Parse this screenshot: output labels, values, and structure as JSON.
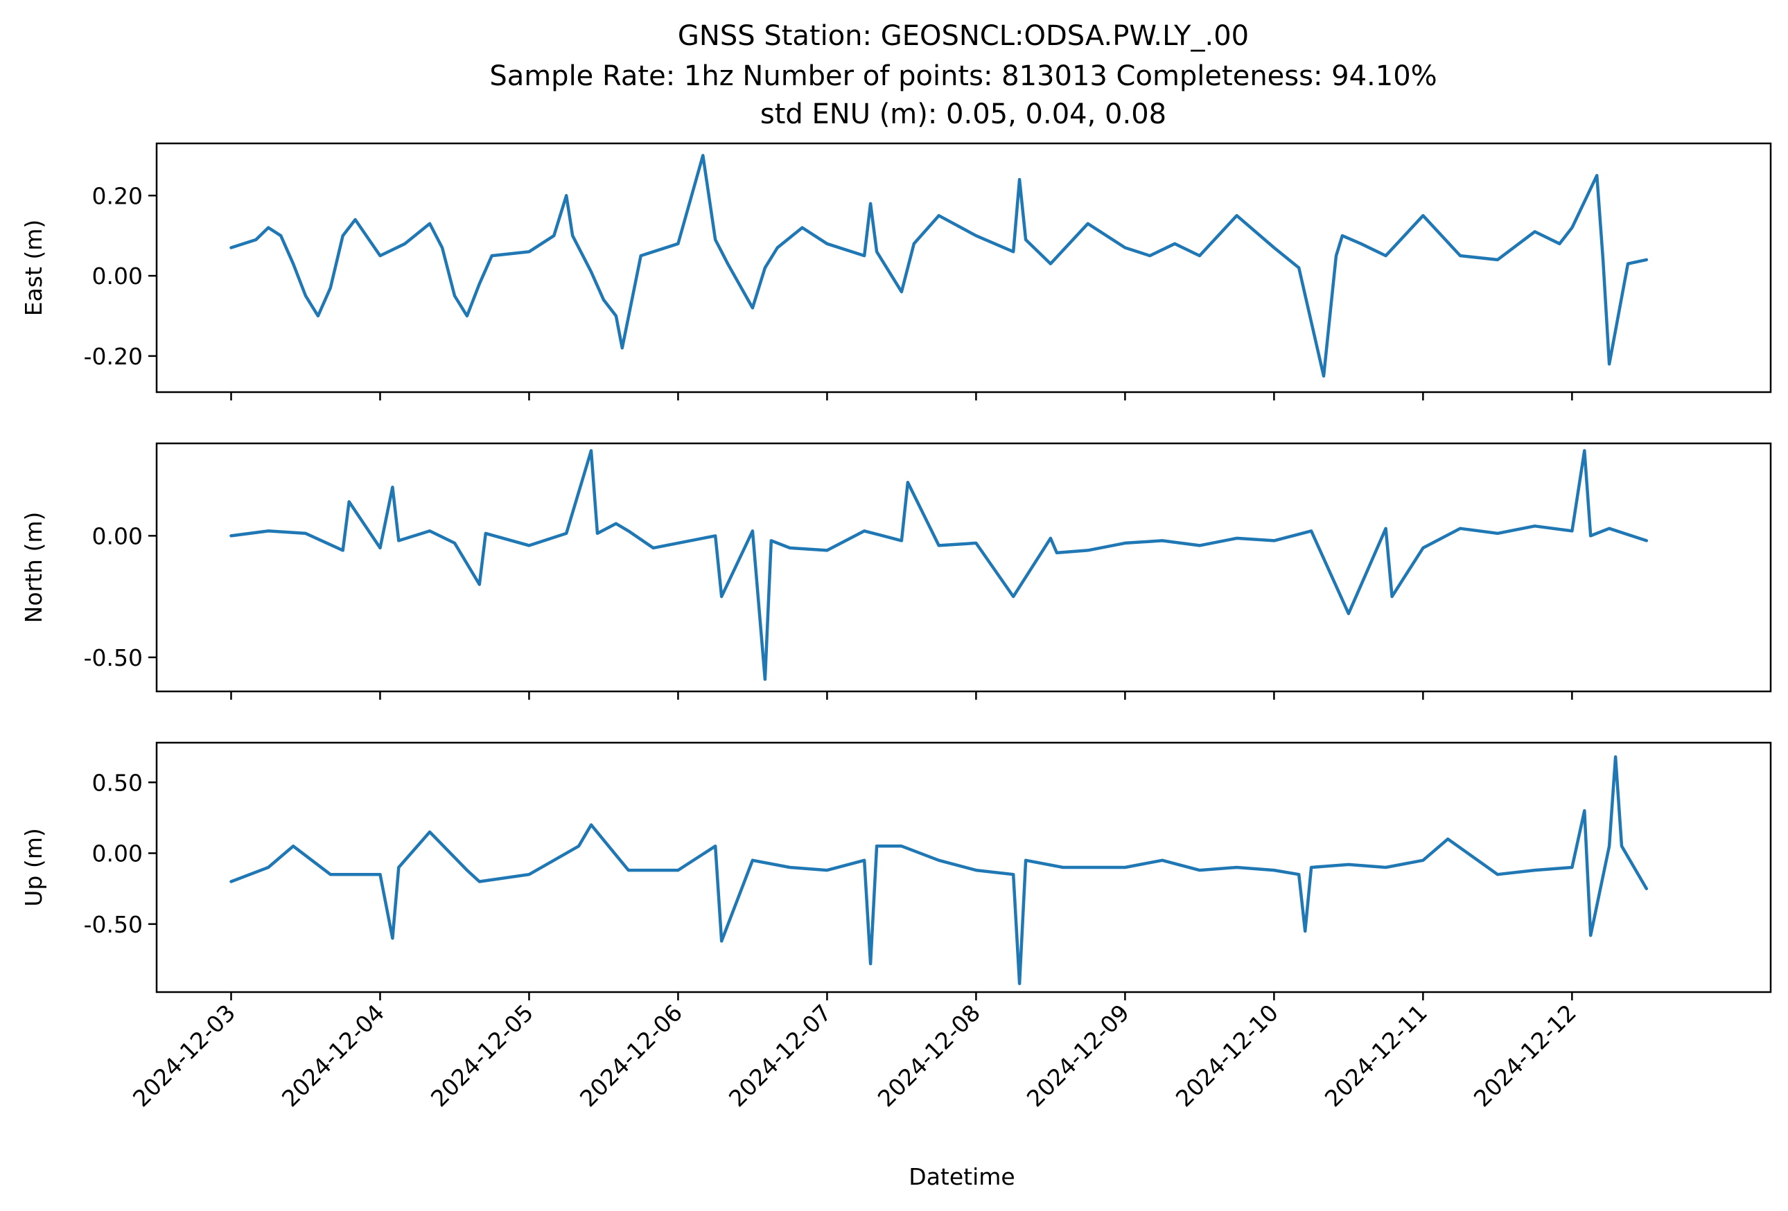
{
  "figure": {
    "title_lines": [
      "GNSS Station: GEOSNCL:ODSA.PW.LY_.00",
      "Sample Rate: 1hz   Number of points: 813013    Completeness:  94.10%",
      "std ENU (m):  0.05, 0.04, 0.08"
    ],
    "xlabel": "Datetime",
    "line_color": "#1f77b4"
  },
  "chart_data": [
    {
      "type": "line",
      "ylabel": "East (m)",
      "xlim": [
        "2024-12-02T12:00",
        "2024-12-13T08:00"
      ],
      "ylim": [
        -0.29,
        0.33
      ],
      "yticks": [
        0.2,
        0.0,
        -0.2
      ],
      "ytick_labels": [
        "0.20",
        "0.00",
        "-0.20"
      ],
      "x_ticks_labeled": false,
      "series": [
        {
          "x": [
            "2024-12-03T00:00",
            "2024-12-03T04:00",
            "2024-12-03T06:00",
            "2024-12-03T08:00",
            "2024-12-03T10:00",
            "2024-12-03T12:00",
            "2024-12-03T14:00",
            "2024-12-03T16:00",
            "2024-12-03T18:00",
            "2024-12-03T20:00",
            "2024-12-04T00:00",
            "2024-12-04T04:00",
            "2024-12-04T08:00",
            "2024-12-04T10:00",
            "2024-12-04T12:00",
            "2024-12-04T14:00",
            "2024-12-04T16:00",
            "2024-12-04T18:00",
            "2024-12-05T00:00",
            "2024-12-05T04:00",
            "2024-12-05T06:00",
            "2024-12-05T07:00",
            "2024-12-05T10:00",
            "2024-12-05T12:00",
            "2024-12-05T14:00",
            "2024-12-05T15:00",
            "2024-12-05T18:00",
            "2024-12-06T00:00",
            "2024-12-06T04:00",
            "2024-12-06T06:00",
            "2024-12-06T07:00",
            "2024-12-06T08:00",
            "2024-12-06T12:00",
            "2024-12-06T14:00",
            "2024-12-06T16:00",
            "2024-12-06T20:00",
            "2024-12-07T00:00",
            "2024-12-07T06:00",
            "2024-12-07T07:00",
            "2024-12-07T08:00",
            "2024-12-07T12:00",
            "2024-12-07T14:00",
            "2024-12-07T18:00",
            "2024-12-08T00:00",
            "2024-12-08T06:00",
            "2024-12-08T07:00",
            "2024-12-08T08:00",
            "2024-12-08T12:00",
            "2024-12-08T18:00",
            "2024-12-09T00:00",
            "2024-12-09T04:00",
            "2024-12-09T08:00",
            "2024-12-09T12:00",
            "2024-12-09T18:00",
            "2024-12-10T00:00",
            "2024-12-10T04:00",
            "2024-12-10T08:00",
            "2024-12-10T10:00",
            "2024-12-10T11:00",
            "2024-12-10T14:00",
            "2024-12-10T18:00",
            "2024-12-11T00:00",
            "2024-12-11T06:00",
            "2024-12-11T12:00",
            "2024-12-11T18:00",
            "2024-12-11T22:00",
            "2024-12-12T00:00",
            "2024-12-12T04:00",
            "2024-12-12T05:00",
            "2024-12-12T06:00",
            "2024-12-12T09:00",
            "2024-12-12T12:00"
          ],
          "y": [
            0.07,
            0.09,
            0.12,
            0.1,
            0.03,
            -0.05,
            -0.1,
            -0.03,
            0.1,
            0.14,
            0.05,
            0.08,
            0.13,
            0.07,
            -0.05,
            -0.1,
            -0.02,
            0.05,
            0.06,
            0.1,
            0.2,
            0.1,
            0.01,
            -0.06,
            -0.1,
            -0.18,
            0.05,
            0.08,
            0.3,
            0.09,
            0.06,
            0.03,
            -0.08,
            0.02,
            0.07,
            0.12,
            0.08,
            0.05,
            0.18,
            0.06,
            -0.04,
            0.08,
            0.15,
            0.1,
            0.06,
            0.24,
            0.09,
            0.03,
            0.13,
            0.07,
            0.05,
            0.08,
            0.05,
            0.15,
            0.07,
            0.02,
            -0.25,
            0.05,
            0.1,
            0.08,
            0.05,
            0.15,
            0.05,
            0.04,
            0.11,
            0.08,
            0.12,
            0.25,
            0.04,
            -0.22,
            0.03,
            0.04
          ]
        }
      ]
    },
    {
      "type": "line",
      "ylabel": "North (m)",
      "xlim": [
        "2024-12-02T12:00",
        "2024-12-13T08:00"
      ],
      "ylim": [
        -0.64,
        0.38
      ],
      "yticks": [
        0.0,
        -0.5
      ],
      "ytick_labels": [
        "0.00",
        "-0.50"
      ],
      "x_ticks_labeled": false,
      "series": [
        {
          "x": [
            "2024-12-03T00:00",
            "2024-12-03T06:00",
            "2024-12-03T12:00",
            "2024-12-03T18:00",
            "2024-12-03T19:00",
            "2024-12-04T00:00",
            "2024-12-04T02:00",
            "2024-12-04T03:00",
            "2024-12-04T08:00",
            "2024-12-04T12:00",
            "2024-12-04T16:00",
            "2024-12-04T17:00",
            "2024-12-05T00:00",
            "2024-12-05T06:00",
            "2024-12-05T10:00",
            "2024-12-05T11:00",
            "2024-12-05T14:00",
            "2024-12-05T16:00",
            "2024-12-05T20:00",
            "2024-12-06T00:00",
            "2024-12-06T06:00",
            "2024-12-06T07:00",
            "2024-12-06T12:00",
            "2024-12-06T14:00",
            "2024-12-06T15:00",
            "2024-12-06T18:00",
            "2024-12-07T00:00",
            "2024-12-07T06:00",
            "2024-12-07T12:00",
            "2024-12-07T13:00",
            "2024-12-07T18:00",
            "2024-12-08T00:00",
            "2024-12-08T06:00",
            "2024-12-08T12:00",
            "2024-12-08T13:00",
            "2024-12-08T18:00",
            "2024-12-09T00:00",
            "2024-12-09T06:00",
            "2024-12-09T12:00",
            "2024-12-09T18:00",
            "2024-12-10T00:00",
            "2024-12-10T06:00",
            "2024-12-10T12:00",
            "2024-12-10T18:00",
            "2024-12-10T19:00",
            "2024-12-11T00:00",
            "2024-12-11T06:00",
            "2024-12-11T12:00",
            "2024-12-11T18:00",
            "2024-12-12T00:00",
            "2024-12-12T02:00",
            "2024-12-12T03:00",
            "2024-12-12T06:00",
            "2024-12-12T12:00"
          ],
          "y": [
            0.0,
            0.02,
            0.01,
            -0.06,
            0.14,
            -0.05,
            0.2,
            -0.02,
            0.02,
            -0.03,
            -0.2,
            0.01,
            -0.04,
            0.01,
            0.35,
            0.01,
            0.05,
            0.02,
            -0.05,
            -0.03,
            0.0,
            -0.25,
            0.02,
            -0.59,
            -0.02,
            -0.05,
            -0.06,
            0.02,
            -0.02,
            0.22,
            -0.04,
            -0.03,
            -0.25,
            -0.01,
            -0.07,
            -0.06,
            -0.03,
            -0.02,
            -0.04,
            -0.01,
            -0.02,
            0.02,
            -0.32,
            0.03,
            -0.25,
            -0.05,
            0.03,
            0.01,
            0.04,
            0.02,
            0.35,
            0.0,
            0.03,
            -0.02
          ]
        }
      ]
    },
    {
      "type": "line",
      "ylabel": "Up (m)",
      "xlim": [
        "2024-12-02T12:00",
        "2024-12-13T08:00"
      ],
      "ylim": [
        -0.98,
        0.78
      ],
      "yticks": [
        0.5,
        0.0,
        -0.5
      ],
      "ytick_labels": [
        "0.50",
        "0.00",
        "-0.50"
      ],
      "x_ticks_labeled": true,
      "series": [
        {
          "x": [
            "2024-12-03T00:00",
            "2024-12-03T06:00",
            "2024-12-03T10:00",
            "2024-12-03T16:00",
            "2024-12-04T00:00",
            "2024-12-04T02:00",
            "2024-12-04T03:00",
            "2024-12-04T08:00",
            "2024-12-04T14:00",
            "2024-12-04T16:00",
            "2024-12-05T00:00",
            "2024-12-05T08:00",
            "2024-12-05T10:00",
            "2024-12-05T16:00",
            "2024-12-06T00:00",
            "2024-12-06T06:00",
            "2024-12-06T07:00",
            "2024-12-06T12:00",
            "2024-12-06T18:00",
            "2024-12-07T00:00",
            "2024-12-07T06:00",
            "2024-12-07T07:00",
            "2024-12-07T08:00",
            "2024-12-07T12:00",
            "2024-12-07T18:00",
            "2024-12-08T00:00",
            "2024-12-08T06:00",
            "2024-12-08T07:00",
            "2024-12-08T08:00",
            "2024-12-08T14:00",
            "2024-12-09T00:00",
            "2024-12-09T06:00",
            "2024-12-09T12:00",
            "2024-12-09T18:00",
            "2024-12-10T00:00",
            "2024-12-10T04:00",
            "2024-12-10T05:00",
            "2024-12-10T06:00",
            "2024-12-10T12:00",
            "2024-12-10T18:00",
            "2024-12-11T00:00",
            "2024-12-11T04:00",
            "2024-12-11T12:00",
            "2024-12-11T18:00",
            "2024-12-12T00:00",
            "2024-12-12T02:00",
            "2024-12-12T03:00",
            "2024-12-12T06:00",
            "2024-12-12T07:00",
            "2024-12-12T08:00",
            "2024-12-12T12:00"
          ],
          "y": [
            -0.2,
            -0.1,
            0.05,
            -0.15,
            -0.15,
            -0.6,
            -0.1,
            0.15,
            -0.12,
            -0.2,
            -0.15,
            0.05,
            0.2,
            -0.12,
            -0.12,
            0.05,
            -0.62,
            -0.05,
            -0.1,
            -0.12,
            -0.05,
            -0.78,
            0.05,
            0.05,
            -0.05,
            -0.12,
            -0.15,
            -0.92,
            -0.05,
            -0.1,
            -0.1,
            -0.05,
            -0.12,
            -0.1,
            -0.12,
            -0.15,
            -0.55,
            -0.1,
            -0.08,
            -0.1,
            -0.05,
            0.1,
            -0.15,
            -0.12,
            -0.1,
            0.3,
            -0.58,
            0.05,
            0.68,
            0.05,
            -0.25
          ]
        }
      ]
    }
  ],
  "x_axis": {
    "tick_dates": [
      "2024-12-03",
      "2024-12-04",
      "2024-12-05",
      "2024-12-06",
      "2024-12-07",
      "2024-12-08",
      "2024-12-09",
      "2024-12-10",
      "2024-12-11",
      "2024-12-12"
    ],
    "tick_labels": [
      "2024-12-03",
      "2024-12-04",
      "2024-12-05",
      "2024-12-06",
      "2024-12-07",
      "2024-12-08",
      "2024-12-09",
      "2024-12-10",
      "2024-12-11",
      "2024-12-12"
    ]
  }
}
